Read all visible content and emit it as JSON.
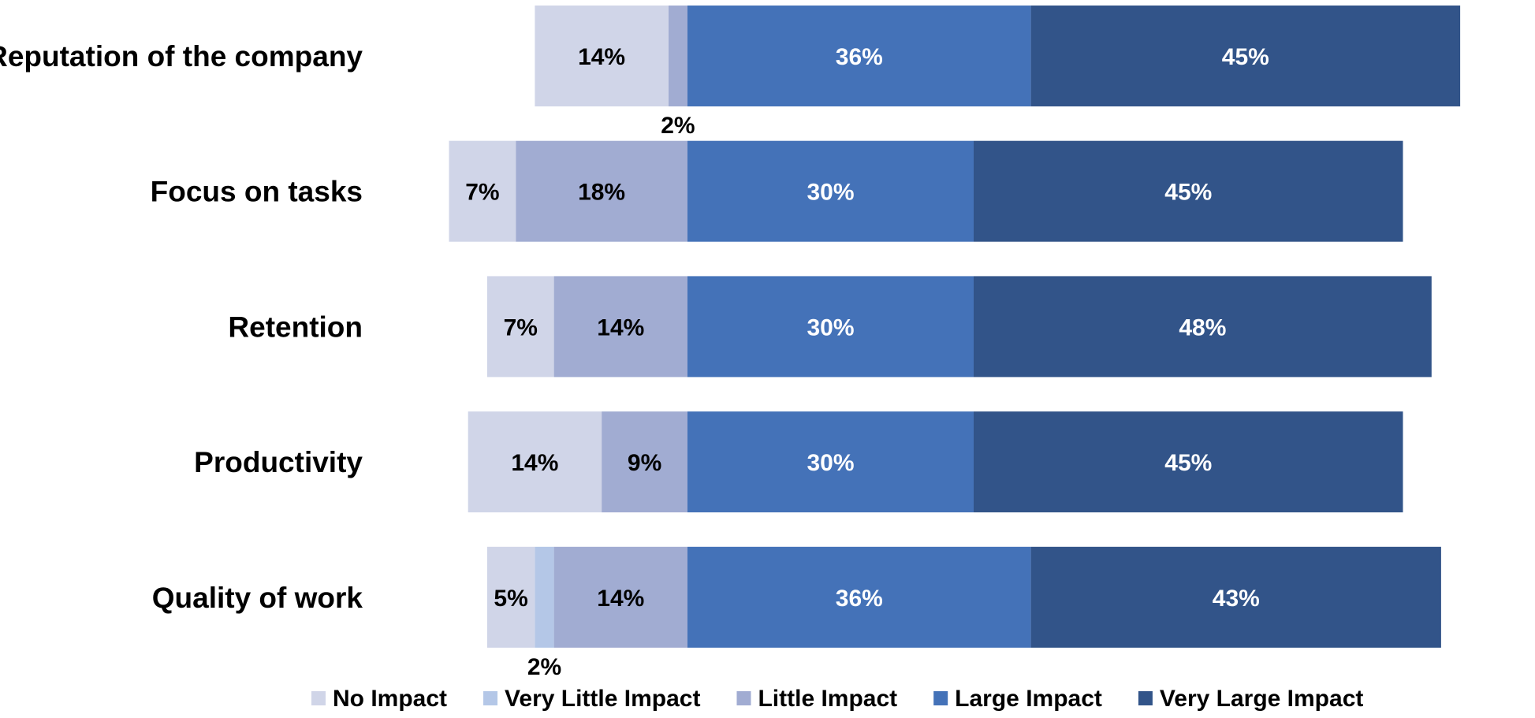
{
  "chart_data": {
    "type": "bar",
    "orientation": "horizontal",
    "stacked": true,
    "layout": "diverging",
    "title": "",
    "xlabel": "",
    "ylabel": "",
    "grid": false,
    "legend_position": "bottom",
    "categories": [
      "Reputation of the company",
      "Focus on tasks",
      "Retention",
      "Productivity",
      "Quality of work"
    ],
    "series": [
      {
        "name": "No Impact",
        "color": "#D0D5E8",
        "label_color": "#000000",
        "values": [
          14,
          7,
          7,
          14,
          5
        ],
        "labels": [
          "14%",
          "7%",
          "7%",
          "14%",
          "5%"
        ]
      },
      {
        "name": "Very Little Impact",
        "color": "#B4C7E7",
        "label_color": "#000000",
        "values": [
          0,
          0,
          0,
          0,
          2
        ],
        "labels": [
          "",
          "",
          "",
          "",
          "2%"
        ]
      },
      {
        "name": "Little Impact",
        "color": "#A1ACD2",
        "label_color": "#000000",
        "values": [
          2,
          18,
          14,
          9,
          14
        ],
        "labels": [
          "2%",
          "18%",
          "14%",
          "9%",
          "14%"
        ]
      },
      {
        "name": "Large Impact",
        "color": "#4472B8",
        "label_color": "#FFFFFF",
        "values": [
          36,
          30,
          30,
          30,
          36
        ],
        "labels": [
          "36%",
          "30%",
          "30%",
          "30%",
          "36%"
        ]
      },
      {
        "name": "Very Large Impact",
        "color": "#325489",
        "label_color": "#FFFFFF",
        "values": [
          45,
          45,
          48,
          45,
          43
        ],
        "labels": [
          "45%",
          "45%",
          "48%",
          "45%",
          "43%"
        ]
      }
    ]
  }
}
